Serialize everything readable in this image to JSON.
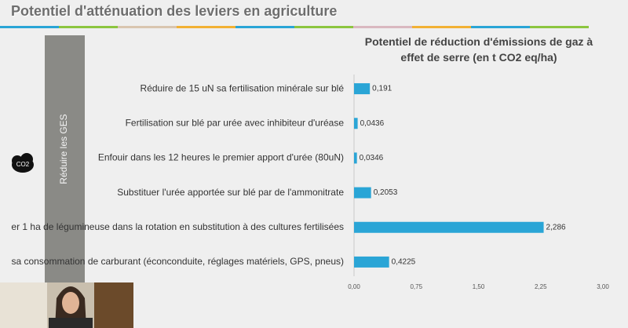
{
  "header": {
    "title": "Potentiel d'atténuation des leviers en agriculture"
  },
  "side_label": "Réduire les GES",
  "icon_label": "CO2",
  "chart_data": {
    "type": "barh",
    "title": "Potentiel de réduction d'émissions de gaz à effet de serre (en t CO2 eq/ha)",
    "categories": [
      "Réduire de 15 uN sa fertilisation minérale sur blé",
      "Fertilisation sur blé par urée avec inhibiteur d'uréase",
      "Enfouir dans les 12 heures le premier apport d'urée (80uN)",
      "Substituer l'urée apportée sur blé par de l'ammonitrate",
      "er 1 ha de légumineuse dans la rotation en substitution à des cultures fertilisées",
      "sa consommation de carburant (éconconduite, réglages matériels, GPS, pneus)"
    ],
    "values": [
      0.191,
      0.0436,
      0.0346,
      0.2053,
      2.286,
      0.4225
    ],
    "value_labels": [
      "0,191",
      "0,0436",
      "0,0346",
      "0,2053",
      "2,286",
      "0,4225"
    ],
    "color": "#2aa5d6",
    "xlim": [
      0,
      3
    ],
    "xticks": [
      {
        "value": 0,
        "label": "0,00"
      },
      {
        "value": 0.75,
        "label": "0,75"
      },
      {
        "value": 1.5,
        "label": "1,50"
      },
      {
        "value": 2.25,
        "label": "2,25"
      },
      {
        "value": 3,
        "label": "3,00"
      }
    ]
  }
}
